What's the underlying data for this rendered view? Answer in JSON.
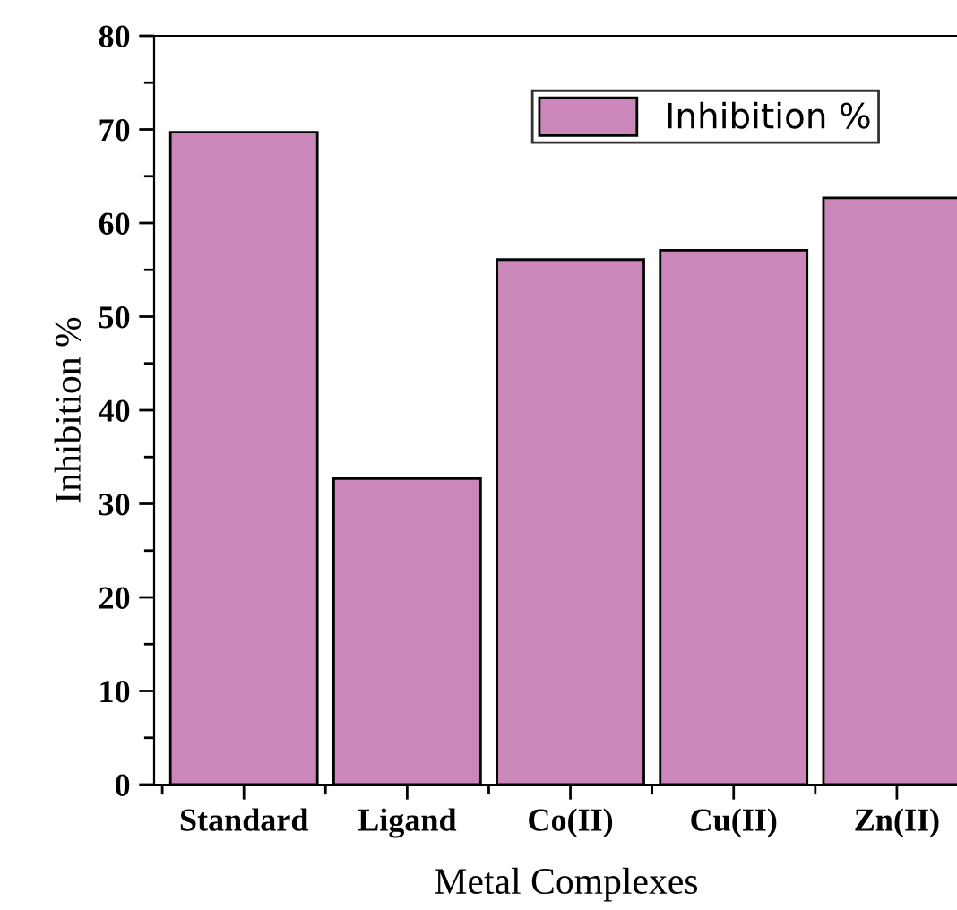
{
  "chart_data": {
    "type": "bar",
    "xlabel": "Metal Complexes",
    "ylabel": "Inhibition %",
    "categories": [
      "Standard",
      "Ligand",
      "Co(II)",
      "Cu(II)",
      "Zn(II)"
    ],
    "series": [
      {
        "name": "Inhibition %",
        "color": "#cb87b9",
        "values": [
          69.7,
          32.7,
          56.1,
          57.1,
          62.7
        ]
      }
    ],
    "ylim": [
      0,
      80
    ],
    "yticks": [
      0,
      10,
      20,
      30,
      40,
      50,
      60,
      70,
      80
    ],
    "grid": false,
    "legend": "top right"
  }
}
